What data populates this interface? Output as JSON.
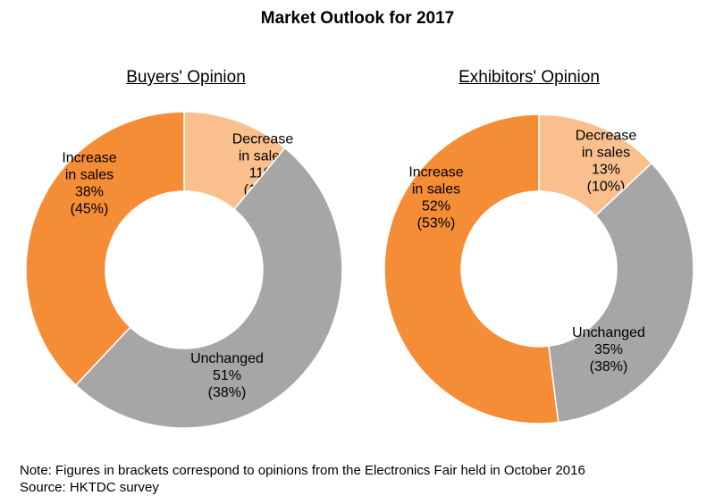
{
  "title": "Market Outlook for 2017",
  "colors": {
    "increase": "#f58c36",
    "decrease": "#f9c08e",
    "unchanged": "#a6a6a6"
  },
  "chart_data": [
    {
      "type": "pie",
      "title": "Buyers' Opinion",
      "slices": [
        {
          "name": "Decrease in sales",
          "value": 11,
          "previous": 17,
          "label_lines": [
            "Decrease",
            "in sales",
            "11%",
            "(17%)"
          ]
        },
        {
          "name": "Unchanged",
          "value": 51,
          "previous": 38,
          "label_lines": [
            "Unchanged",
            "51%",
            "(38%)"
          ]
        },
        {
          "name": "Increase in sales",
          "value": 38,
          "previous": 45,
          "label_lines": [
            "Increase",
            "in sales",
            "38%",
            "(45%)"
          ]
        }
      ]
    },
    {
      "type": "pie",
      "title": "Exhibitors' Opinion",
      "slices": [
        {
          "name": "Decrease in sales",
          "value": 13,
          "previous": 10,
          "label_lines": [
            "Decrease",
            "in sales",
            "13%",
            "(10%)"
          ]
        },
        {
          "name": "Unchanged",
          "value": 35,
          "previous": 38,
          "label_lines": [
            "Unchanged",
            "35%",
            "(38%)"
          ]
        },
        {
          "name": "Increase in sales",
          "value": 52,
          "previous": 53,
          "label_lines": [
            "Increase",
            "in sales",
            "52%",
            "(53%)"
          ]
        }
      ]
    }
  ],
  "note": "Note: Figures in brackets correspond to opinions from the Electronics Fair held in October 2016",
  "source": "Source: HKTDC survey"
}
